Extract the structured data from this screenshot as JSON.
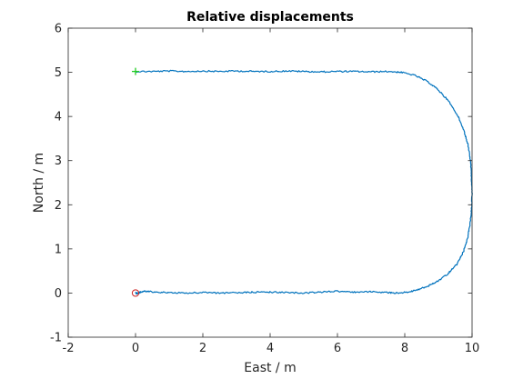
{
  "chart_data": {
    "type": "line",
    "title": "Relative displacements",
    "xlabel": "East / m",
    "ylabel": "North / m",
    "xlim": [
      -2,
      10
    ],
    "ylim": [
      -1,
      6
    ],
    "xticks": [
      "-2",
      "0",
      "2",
      "4",
      "6",
      "8",
      "10"
    ],
    "yticks": [
      "-1",
      "0",
      "1",
      "2",
      "3",
      "4",
      "5",
      "6"
    ],
    "grid": false,
    "colors": {
      "path": "#0072BD",
      "start_marker": "#22CC22",
      "end_marker": "#CC2222",
      "axes": "#262626"
    },
    "series": [
      {
        "points": [
          [
            0.0,
            5.02
          ],
          [
            0.5,
            5.02
          ],
          [
            1.0,
            5.03
          ],
          [
            1.5,
            5.02
          ],
          [
            2.0,
            5.03
          ],
          [
            2.5,
            5.02
          ],
          [
            3.0,
            5.03
          ],
          [
            3.5,
            5.02
          ],
          [
            4.0,
            5.02
          ],
          [
            4.5,
            5.03
          ],
          [
            5.0,
            5.02
          ],
          [
            5.5,
            5.01
          ],
          [
            6.0,
            5.02
          ],
          [
            6.5,
            5.02
          ],
          [
            7.0,
            5.01
          ],
          [
            7.5,
            5.02
          ],
          [
            7.9,
            5.0
          ],
          [
            8.3,
            4.93
          ],
          [
            8.7,
            4.78
          ],
          [
            9.0,
            4.6
          ],
          [
            9.3,
            4.35
          ],
          [
            9.55,
            4.05
          ],
          [
            9.75,
            3.7
          ],
          [
            9.88,
            3.35
          ],
          [
            9.95,
            3.0
          ],
          [
            9.98,
            2.65
          ],
          [
            10.0,
            2.3
          ],
          [
            9.99,
            1.95
          ],
          [
            9.95,
            1.6
          ],
          [
            9.87,
            1.25
          ],
          [
            9.75,
            0.95
          ],
          [
            9.55,
            0.65
          ],
          [
            9.3,
            0.45
          ],
          [
            9.0,
            0.28
          ],
          [
            8.7,
            0.16
          ],
          [
            8.4,
            0.08
          ],
          [
            8.1,
            0.02
          ],
          [
            7.8,
            0.0
          ],
          [
            7.5,
            0.01
          ],
          [
            7.0,
            0.03
          ],
          [
            6.5,
            0.02
          ],
          [
            6.0,
            0.04
          ],
          [
            5.5,
            0.02
          ],
          [
            5.0,
            0.0
          ],
          [
            4.5,
            0.01
          ],
          [
            4.0,
            0.02
          ],
          [
            3.5,
            0.02
          ],
          [
            3.0,
            0.01
          ],
          [
            2.5,
            0.0
          ],
          [
            2.0,
            0.01
          ],
          [
            1.5,
            0.0
          ],
          [
            1.0,
            0.01
          ],
          [
            0.6,
            0.02
          ],
          [
            0.3,
            0.04
          ],
          [
            0.15,
            0.02
          ],
          [
            0.05,
            -0.01
          ],
          [
            0.0,
            0.0
          ]
        ]
      }
    ],
    "markers": [
      {
        "marker": "+",
        "x": 0.0,
        "y": 5.02
      },
      {
        "marker": "o",
        "x": 0.0,
        "y": 0.0
      }
    ]
  }
}
